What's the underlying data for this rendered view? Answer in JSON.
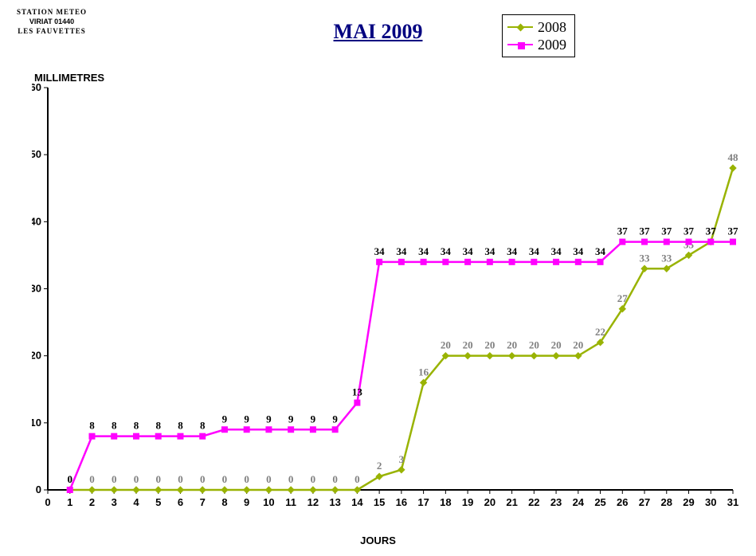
{
  "title": "MAI 2009",
  "logo": {
    "top": "STATION METEO",
    "mid": "VIRIAT 01440",
    "bot": "LES FAUVETTES"
  },
  "axes": {
    "x": {
      "label": "JOURS",
      "min": 0,
      "max": 31,
      "tick_step": 1
    },
    "y": {
      "label": "MILLIMETRES",
      "min": 0,
      "max": 60,
      "tick_step": 10
    }
  },
  "legend": [
    {
      "name": "2008",
      "color": "#99b303",
      "marker": "diamond"
    },
    {
      "name": "2009",
      "color": "#ff00ff",
      "marker": "square"
    }
  ],
  "chart": {
    "type": "line",
    "background": "#ffffff",
    "days": [
      1,
      2,
      3,
      4,
      5,
      6,
      7,
      8,
      9,
      10,
      11,
      12,
      13,
      14,
      15,
      16,
      17,
      18,
      19,
      20,
      21,
      22,
      23,
      24,
      25,
      26,
      27,
      28,
      29,
      30,
      31
    ],
    "series": [
      {
        "name": "2008",
        "color": "#99b303",
        "label_color": "#808080",
        "marker": "diamond",
        "values": [
          0,
          0,
          0,
          0,
          0,
          0,
          0,
          0,
          0,
          0,
          0,
          0,
          0,
          0,
          2,
          3,
          16,
          20,
          20,
          20,
          20,
          20,
          20,
          20,
          22,
          27,
          33,
          33,
          35,
          37,
          48
        ]
      },
      {
        "name": "2009",
        "color": "#ff00ff",
        "label_color": "#000000",
        "marker": "square",
        "values": [
          0,
          8,
          8,
          8,
          8,
          8,
          8,
          9,
          9,
          9,
          9,
          9,
          9,
          13,
          34,
          34,
          34,
          34,
          34,
          34,
          34,
          34,
          34,
          34,
          34,
          37,
          37,
          37,
          37,
          37,
          37
        ]
      }
    ]
  },
  "style": {
    "title_color": "#000080",
    "title_fontsize": 26,
    "axis_label_fontsize": 13,
    "tick_fontsize": 13,
    "line_width": 2.5,
    "marker_size": 7
  }
}
